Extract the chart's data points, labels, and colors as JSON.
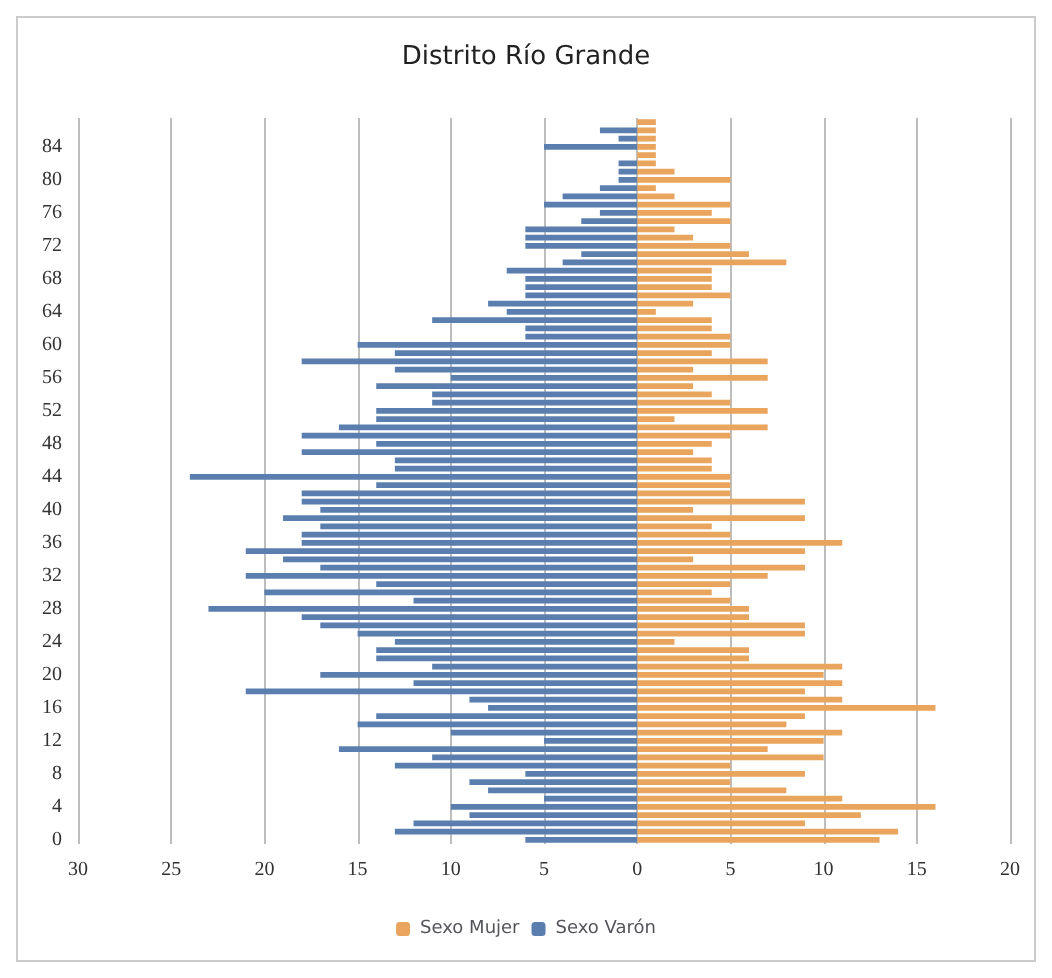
{
  "chart_data": {
    "type": "bar",
    "title": "Distrito Río Grande",
    "orientation": "horizontal",
    "stacked": true,
    "grid": "x",
    "legend": "bottom",
    "categories": [
      null,
      null,
      null,
      "84",
      null,
      null,
      null,
      "80",
      null,
      null,
      null,
      "76",
      null,
      null,
      null,
      "72",
      null,
      null,
      null,
      "68",
      null,
      null,
      null,
      "64",
      null,
      null,
      null,
      "60",
      null,
      null,
      null,
      "56",
      null,
      null,
      null,
      "52",
      null,
      null,
      null,
      "48",
      null,
      null,
      null,
      "44",
      null,
      null,
      null,
      "40",
      null,
      null,
      null,
      "36",
      null,
      null,
      null,
      "32",
      null,
      null,
      null,
      "28",
      null,
      null,
      null,
      "24",
      null,
      null,
      null,
      "20",
      null,
      null,
      null,
      "16",
      null,
      null,
      null,
      "12",
      null,
      null,
      null,
      "8",
      null,
      null,
      null,
      "4",
      null,
      null,
      null,
      "0"
    ],
    "xlim": [
      -30,
      20
    ],
    "xticks": [
      {
        "value": -30,
        "label": "30"
      },
      {
        "value": -25,
        "label": "25"
      },
      {
        "value": -20,
        "label": "20"
      },
      {
        "value": -15,
        "label": "15"
      },
      {
        "value": -10,
        "label": "10"
      },
      {
        "value": -5,
        "label": "5"
      },
      0,
      5,
      10,
      15,
      20
    ],
    "series": [
      {
        "name": "Sexo Mujer",
        "color": "#e9a55e",
        "values": [
          1,
          1,
          1,
          1,
          1,
          1,
          2,
          5,
          1,
          2,
          5,
          4,
          5,
          2,
          3,
          5,
          6,
          8,
          4,
          4,
          4,
          5,
          3,
          1,
          4,
          4,
          5,
          5,
          4,
          7,
          3,
          7,
          3,
          4,
          5,
          7,
          2,
          7,
          5,
          4,
          3,
          4,
          4,
          5,
          5,
          5,
          9,
          3,
          9,
          4,
          5,
          11,
          9,
          3,
          9,
          7,
          5,
          4,
          5,
          6,
          6,
          9,
          9,
          2,
          6,
          6,
          11,
          10,
          11,
          9,
          11,
          16,
          9,
          8,
          11,
          10,
          7,
          10,
          5,
          9,
          5,
          8,
          11,
          16,
          12,
          9,
          14,
          13
        ]
      },
      {
        "name": "Sexo Varón",
        "color": "#5a7fae",
        "values": [
          0,
          -2,
          -1,
          -5,
          0,
          -1,
          -1,
          -1,
          -2,
          -4,
          -5,
          -2,
          -3,
          -6,
          -6,
          -6,
          -3,
          -4,
          -7,
          -6,
          -6,
          -6,
          -8,
          -7,
          -11,
          -6,
          -6,
          -15,
          -13,
          -18,
          -13,
          -10,
          -14,
          -11,
          -11,
          -14,
          -14,
          -16,
          -18,
          -14,
          -18,
          -13,
          -13,
          -24,
          -14,
          -18,
          -18,
          -17,
          -19,
          -17,
          -18,
          -18,
          -21,
          -19,
          -17,
          -21,
          -14,
          -20,
          -12,
          -23,
          -18,
          -17,
          -15,
          -13,
          -14,
          -14,
          -11,
          -17,
          -12,
          -21,
          -9,
          -8,
          -14,
          -15,
          -10,
          -5,
          -16,
          -11,
          -13,
          -6,
          -9,
          -8,
          -5,
          -10,
          -9,
          -12,
          -13,
          -6
        ]
      }
    ]
  }
}
